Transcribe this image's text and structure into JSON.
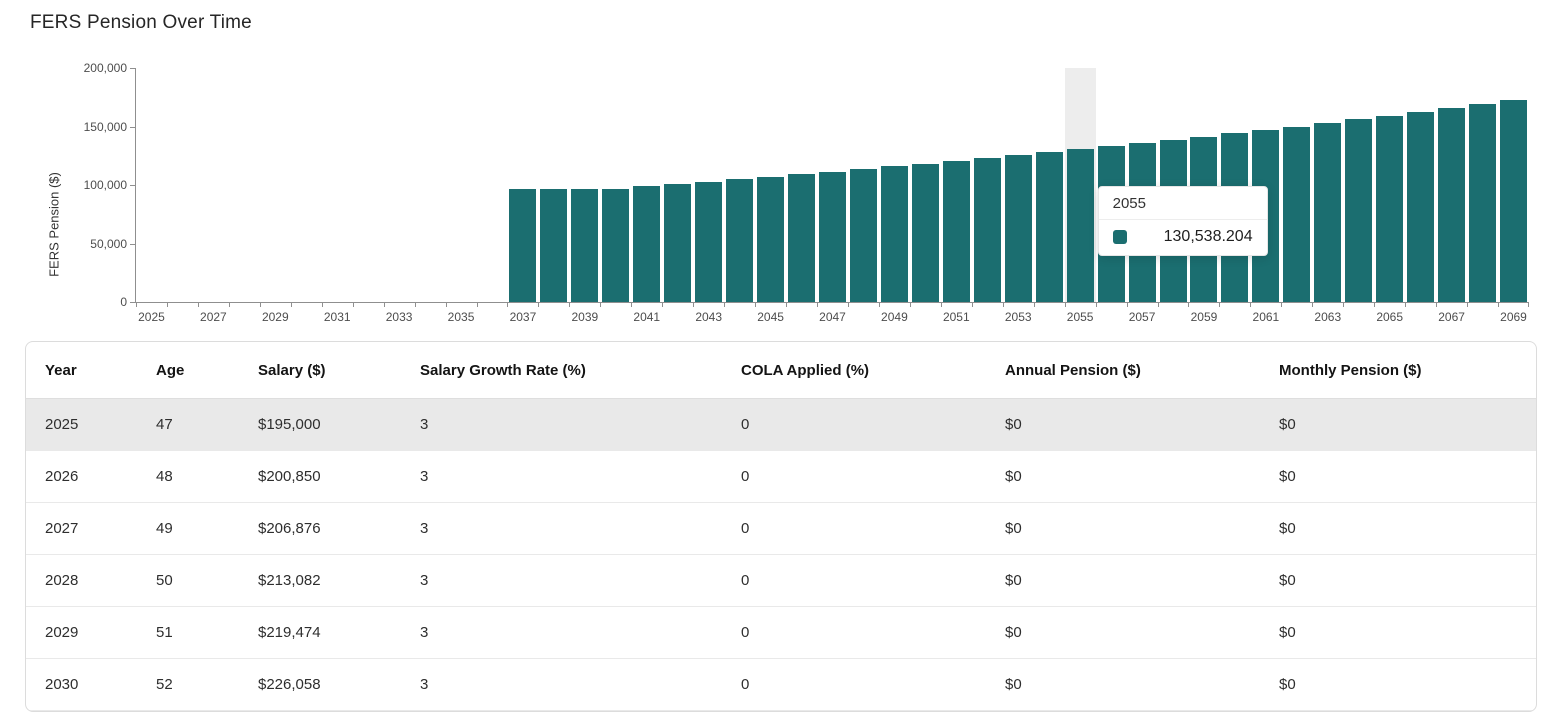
{
  "title": "FERS Pension Over Time",
  "chart_data": {
    "type": "bar",
    "title": "FERS Pension Over Time",
    "xlabel": "",
    "ylabel": "FERS Pension ($)",
    "ylim": [
      0,
      200000
    ],
    "grid": false,
    "legend": "none",
    "bar_color": "#1b6e70",
    "highlight_band_color": "#ededed",
    "y_ticks": [
      0,
      50000,
      100000,
      150000,
      200000
    ],
    "y_tick_labels": [
      "0",
      "50,000",
      "100,000",
      "150,000",
      "200,000"
    ],
    "x_tick_labels": [
      "2025",
      "2027",
      "2029",
      "2031",
      "2033",
      "2035",
      "2037",
      "2039",
      "2041",
      "2043",
      "2045",
      "2047",
      "2049",
      "2051",
      "2053",
      "2055",
      "2057",
      "2059",
      "2061",
      "2063",
      "2065",
      "2067",
      "2069"
    ],
    "x": [
      2025,
      2026,
      2027,
      2028,
      2029,
      2030,
      2031,
      2032,
      2033,
      2034,
      2035,
      2036,
      2037,
      2038,
      2039,
      2040,
      2041,
      2042,
      2043,
      2044,
      2045,
      2046,
      2047,
      2048,
      2049,
      2050,
      2051,
      2052,
      2053,
      2054,
      2055,
      2056,
      2057,
      2058,
      2059,
      2060,
      2061,
      2062,
      2063,
      2064,
      2065,
      2066,
      2067,
      2068,
      2069
    ],
    "values": [
      0,
      0,
      0,
      0,
      0,
      0,
      0,
      0,
      0,
      0,
      0,
      0,
      96991.84,
      96991.84,
      96991.84,
      96991.84,
      98931.68,
      100910.31,
      102928.52,
      104987.09,
      107086.83,
      109228.57,
      111413.14,
      113641.4,
      115914.23,
      118232.51,
      120597.16,
      123009.11,
      125469.29,
      127978.67,
      130538.204,
      133148.97,
      135811.95,
      138528.19,
      141298.75,
      144124.73,
      147007.22,
      149947.37,
      152946.31,
      156005.24,
      159125.35,
      162307.85,
      165554.01,
      168865.09,
      172242.39
    ],
    "highlighted_year": 2055,
    "tooltip": {
      "title": "2055",
      "value": "130,538.204",
      "swatch_color": "#1b6e70"
    }
  },
  "table": {
    "columns": [
      "Year",
      "Age",
      "Salary ($)",
      "Salary Growth Rate (%)",
      "COLA Applied (%)",
      "Annual Pension ($)",
      "Monthly Pension ($)"
    ],
    "rows": [
      [
        "2025",
        "47",
        "$195,000",
        "3",
        "0",
        "$0",
        "$0"
      ],
      [
        "2026",
        "48",
        "$200,850",
        "3",
        "0",
        "$0",
        "$0"
      ],
      [
        "2027",
        "49",
        "$206,876",
        "3",
        "0",
        "$0",
        "$0"
      ],
      [
        "2028",
        "50",
        "$213,082",
        "3",
        "0",
        "$0",
        "$0"
      ],
      [
        "2029",
        "51",
        "$219,474",
        "3",
        "0",
        "$0",
        "$0"
      ],
      [
        "2030",
        "52",
        "$226,058",
        "3",
        "0",
        "$0",
        "$0"
      ]
    ],
    "highlighted_row": "2025"
  }
}
